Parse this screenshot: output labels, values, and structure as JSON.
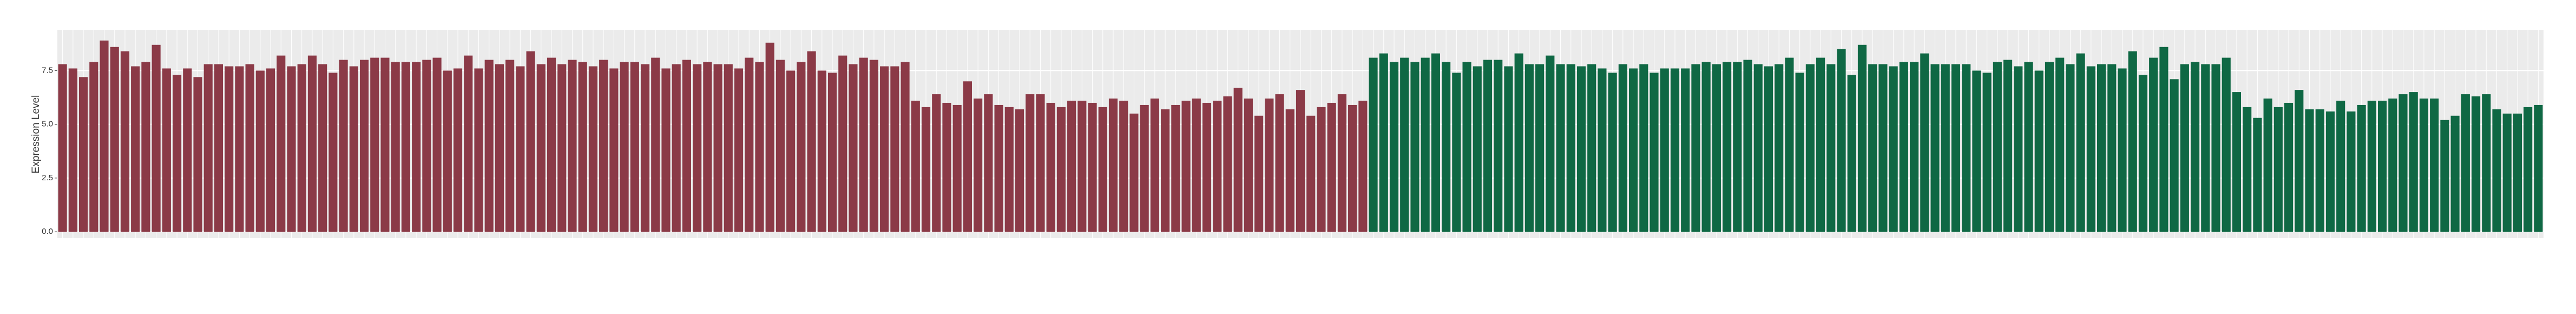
{
  "chart_data": {
    "type": "bar",
    "y_label": "Expression Level",
    "ylim": [
      -0.3,
      9.4
    ],
    "yticks": [
      {
        "value": 0,
        "label": "0.0"
      },
      2.5,
      {
        "value": 5,
        "label": "5.0"
      },
      7.5
    ],
    "grid": true,
    "series": [
      {
        "color": "#8b3a47",
        "values": [
          7.8,
          7.6,
          7.2,
          7.9,
          8.9,
          8.6,
          8.4,
          7.7,
          7.9,
          8.7,
          7.6,
          7.3,
          7.6,
          7.2,
          7.8,
          7.8,
          7.7,
          7.7,
          7.8,
          7.5,
          7.6,
          8.2,
          7.7,
          7.8,
          8.2,
          7.8,
          7.4,
          8.0,
          7.7,
          8.0,
          8.1,
          8.1,
          7.9,
          7.9,
          7.9,
          8.0,
          8.1,
          7.5,
          7.6,
          8.2,
          7.6,
          8.0,
          7.8,
          8.0,
          7.7,
          8.4,
          7.8,
          8.1,
          7.8,
          8.0,
          7.9,
          7.7,
          8.0,
          7.6,
          7.9,
          7.9,
          7.8,
          8.1,
          7.6,
          7.8,
          8.0,
          7.8,
          7.9,
          7.8,
          7.8,
          7.6,
          8.1,
          7.9,
          8.8,
          8.0,
          7.5,
          7.9,
          8.4,
          7.5,
          7.4,
          8.2,
          7.8,
          8.1,
          8.0,
          7.7,
          7.7,
          7.9,
          6.1,
          5.8,
          6.4,
          6.0,
          5.9,
          7.0,
          6.2,
          6.4,
          5.9,
          5.8,
          5.7,
          6.4,
          6.4,
          6.0,
          5.8,
          6.1,
          6.1,
          6.0,
          5.8,
          6.2,
          6.1,
          5.5,
          5.9,
          6.2,
          5.7,
          5.9,
          6.1,
          6.2,
          6.0,
          6.1,
          6.3,
          6.7,
          6.2,
          5.4,
          6.2,
          6.4,
          5.7,
          6.6,
          5.4,
          5.8,
          6.0,
          6.4,
          5.9,
          6.1
        ]
      },
      {
        "color": "#0f6844",
        "values": [
          8.1,
          8.3,
          7.9,
          8.1,
          7.9,
          8.1,
          8.3,
          7.9,
          7.4,
          7.9,
          7.7,
          8.0,
          8.0,
          7.7,
          8.3,
          7.8,
          7.8,
          8.2,
          7.8,
          7.8,
          7.7,
          7.8,
          7.6,
          7.4,
          7.8,
          7.6,
          7.8,
          7.4,
          7.6,
          7.6,
          7.6,
          7.8,
          7.9,
          7.8,
          7.9,
          7.9,
          8.0,
          7.8,
          7.7,
          7.8,
          8.1,
          7.4,
          7.8,
          8.1,
          7.8,
          8.5,
          7.3,
          8.7,
          7.8,
          7.8,
          7.7,
          7.9,
          7.9,
          8.3,
          7.8,
          7.8,
          7.8,
          7.8,
          7.5,
          7.4,
          7.9,
          8.0,
          7.7,
          7.9,
          7.5,
          7.9,
          8.1,
          7.8,
          8.3,
          7.7,
          7.8,
          7.8,
          7.6,
          8.4,
          7.3,
          8.1,
          8.6,
          7.1,
          7.8,
          7.9,
          7.8,
          7.8,
          8.1,
          6.5,
          5.8,
          5.3,
          6.2,
          5.8,
          6.0,
          6.6,
          5.7,
          5.7,
          5.6,
          6.1,
          5.6,
          5.9,
          6.1,
          6.1,
          6.2,
          6.4,
          6.5,
          6.2,
          6.2,
          5.2,
          5.4,
          6.4,
          6.3,
          6.4,
          5.7,
          5.5,
          5.5,
          5.8,
          5.9
        ]
      }
    ]
  }
}
